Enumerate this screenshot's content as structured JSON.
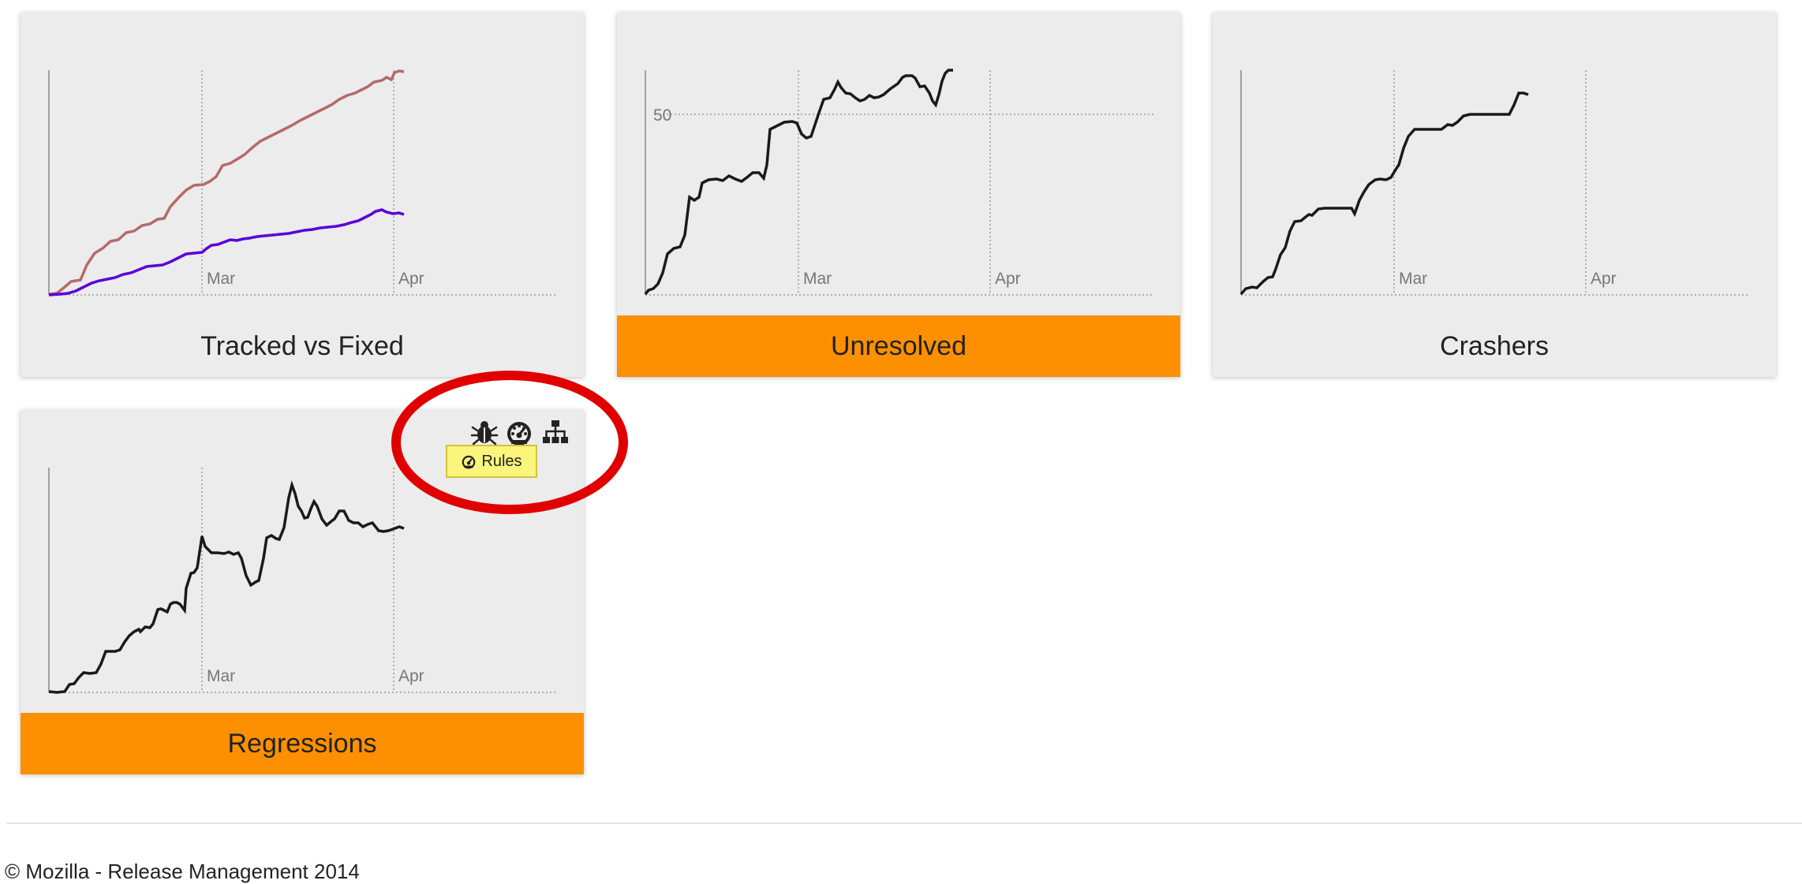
{
  "cards": [
    {
      "title": "Tracked vs Fixed",
      "alert": false,
      "month_labels": [
        "Mar",
        "Apr"
      ],
      "ytick": ""
    },
    {
      "title": "Unresolved",
      "alert": true,
      "month_labels": [
        "Mar",
        "Apr"
      ],
      "ytick": "50"
    },
    {
      "title": "Crashers",
      "alert": false,
      "month_labels": [
        "Mar",
        "Apr"
      ],
      "ytick": ""
    },
    {
      "title": "Regressions",
      "alert": true,
      "month_labels": [
        "Mar",
        "Apr"
      ],
      "ytick": ""
    }
  ],
  "card_icons": {
    "bug": "bug-icon",
    "rules": "dashboard-icon",
    "component": "sitemap-icon"
  },
  "tooltip": {
    "label": "Rules",
    "icon": "dashboard-icon"
  },
  "colors": {
    "tracked": "#b56a6a",
    "fixed": "#5a00d8",
    "line": "#1a1a1a",
    "alert": "#fc9000",
    "annotation": "#e00000"
  },
  "footer": {
    "text": "© Mozilla - Release Management 2014"
  }
}
